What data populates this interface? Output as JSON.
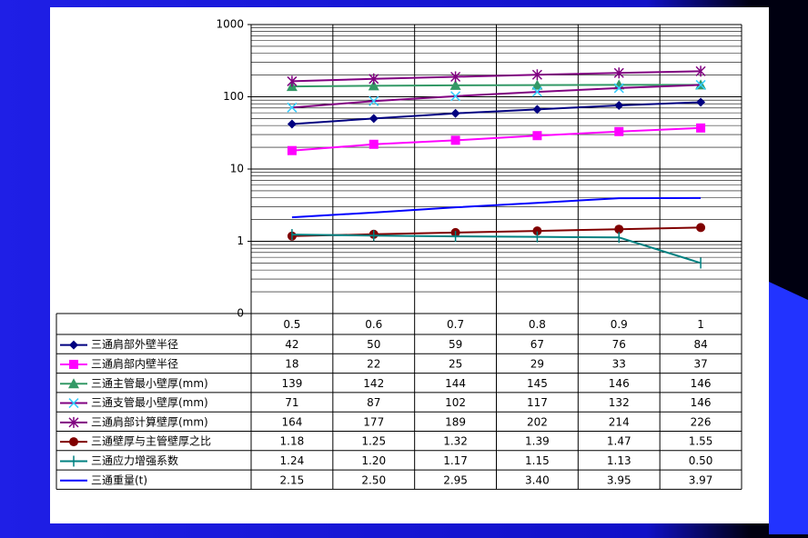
{
  "chart_data": {
    "type": "line",
    "log_scale": true,
    "grid": true,
    "minor_grid": true,
    "categories": [
      "0.5",
      "0.6",
      "0.7",
      "0.8",
      "0.9",
      "1"
    ],
    "ylim": [
      0.1,
      1000
    ],
    "yticks": [
      {
        "value": 0.1,
        "label": "0"
      },
      1,
      10,
      100,
      1000
    ],
    "series": [
      {
        "name": "三通肩部外壁半径",
        "color": "#000080",
        "marker": "diamond",
        "values": [
          42,
          50,
          59,
          67,
          76,
          84
        ]
      },
      {
        "name": "三通肩部内壁半径",
        "color": "#ff00ff",
        "marker": "square",
        "values": [
          18,
          22,
          25,
          29,
          33,
          37
        ]
      },
      {
        "name": "三通主管最小壁厚(mm)",
        "color": "#339966",
        "marker": "triangle",
        "values": [
          139,
          142,
          144,
          145,
          146,
          146
        ]
      },
      {
        "name": "三通支管最小壁厚(mm)",
        "color": "#800080",
        "marker_color": "#33ccff",
        "marker": "x",
        "values": [
          71,
          87,
          102,
          117,
          132,
          146
        ]
      },
      {
        "name": "三通肩部计算壁厚(mm)",
        "color": "#800080",
        "marker": "star",
        "values": [
          164,
          177,
          189,
          202,
          214,
          226
        ]
      },
      {
        "name": "三通壁厚与主管壁厚之比",
        "color": "#800000",
        "marker": "circle",
        "values": [
          1.18,
          1.25,
          1.32,
          1.39,
          1.47,
          1.55
        ]
      },
      {
        "name": "三通应力增强系数",
        "color": "#008080",
        "marker": "plus",
        "values": [
          1.24,
          1.2,
          1.17,
          1.15,
          1.13,
          0.5
        ],
        "value_labels": [
          "1.24",
          "1.20",
          "1.17",
          "1.15",
          "1.13",
          "0.50"
        ]
      },
      {
        "name": "三通重量(t)",
        "color": "#0000ff",
        "marker": "none",
        "values": [
          2.15,
          2.5,
          2.95,
          3.4,
          3.95,
          3.97
        ],
        "value_labels": [
          "2.15",
          "2.50",
          "2.95",
          "3.40",
          "3.95",
          "3.97"
        ]
      }
    ]
  }
}
